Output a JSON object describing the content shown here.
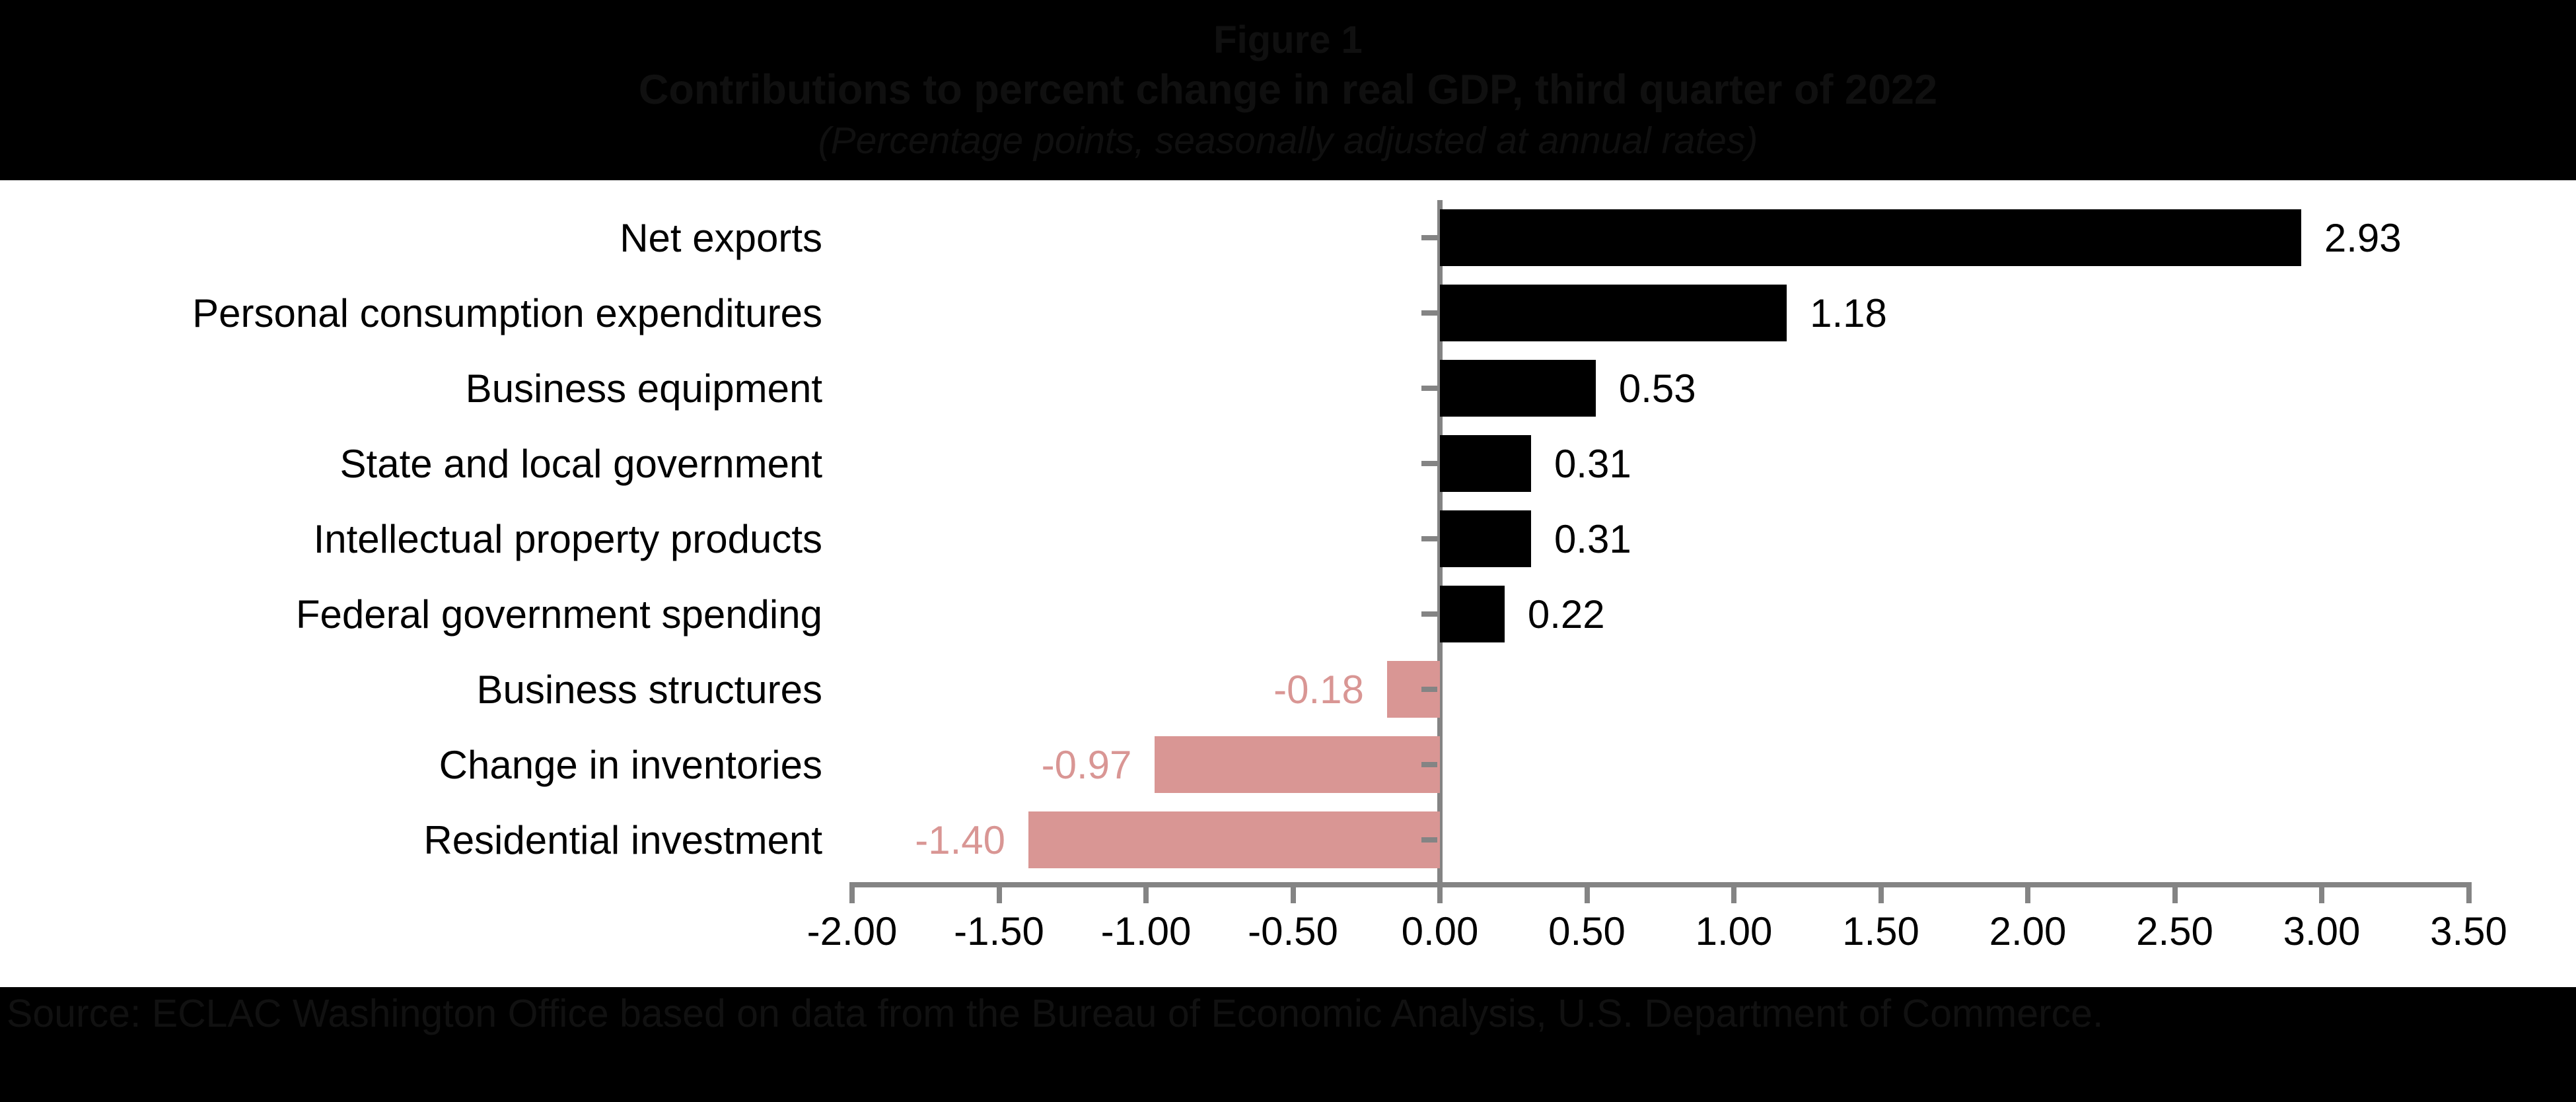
{
  "header": {
    "figure_label": "Figure 1",
    "title": "Contributions to percent change in real GDP, third quarter of 2022",
    "subtitle": "(Percentage points, seasonally adjusted at annual rates)"
  },
  "footer": {
    "source": "Source: ECLAC Washington Office based on data from the Bureau of Economic Analysis, U.S. Department of Commerce."
  },
  "chart_data": {
    "type": "bar",
    "orientation": "horizontal",
    "title": "Contributions to percent change in real GDP, third quarter of 2022",
    "xlabel": "Percentage points, seasonally adjusted at annual rates",
    "ylabel": "",
    "grid": false,
    "legend": false,
    "categories": [
      "Net exports",
      "Personal consumption expenditures",
      "Business equipment",
      "State and local government",
      "Intellectual property products",
      "Federal government spending",
      "Business structures",
      "Change in inventories",
      "Residential investment"
    ],
    "values": [
      2.93,
      1.18,
      0.53,
      0.31,
      0.31,
      0.22,
      -0.18,
      -0.97,
      -1.4
    ],
    "value_labels": [
      "2.93",
      "1.18",
      "0.53",
      "0.31",
      "0.31",
      "0.22",
      "-0.18",
      "-0.97",
      "-1.40"
    ],
    "axis": {
      "min": -2.0,
      "max": 3.5,
      "step": 0.5,
      "tick_labels": [
        "-2.00",
        "-1.50",
        "-1.00",
        "-0.50",
        "0.00",
        "0.50",
        "1.00",
        "1.50",
        "2.00",
        "2.50",
        "3.00",
        "3.50"
      ]
    },
    "colors": {
      "positive_bar": "#000000",
      "negative_bar": "#D99694",
      "positive_label": "#000000",
      "negative_label": "#D99694",
      "axis": "#848484"
    }
  }
}
